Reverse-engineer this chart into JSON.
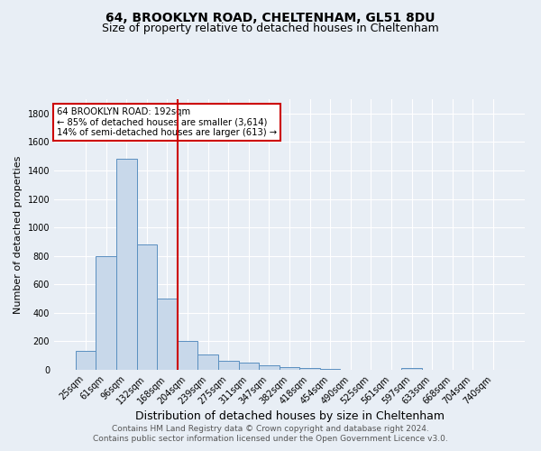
{
  "title": "64, BROOKLYN ROAD, CHELTENHAM, GL51 8DU",
  "subtitle": "Size of property relative to detached houses in Cheltenham",
  "xlabel": "Distribution of detached houses by size in Cheltenham",
  "ylabel": "Number of detached properties",
  "footer_line1": "Contains HM Land Registry data © Crown copyright and database right 2024.",
  "footer_line2": "Contains public sector information licensed under the Open Government Licence v3.0.",
  "bar_labels": [
    "25sqm",
    "61sqm",
    "96sqm",
    "132sqm",
    "168sqm",
    "204sqm",
    "239sqm",
    "275sqm",
    "311sqm",
    "347sqm",
    "382sqm",
    "418sqm",
    "454sqm",
    "490sqm",
    "525sqm",
    "561sqm",
    "597sqm",
    "633sqm",
    "668sqm",
    "704sqm",
    "740sqm"
  ],
  "bar_values": [
    130,
    800,
    1480,
    880,
    500,
    205,
    105,
    65,
    48,
    33,
    18,
    10,
    5,
    3,
    2,
    1,
    12,
    0,
    0,
    0,
    0
  ],
  "bar_color": "#c8d8ea",
  "bar_edge_color": "#5a8fc0",
  "vline_color": "#cc0000",
  "annotation_text": "64 BROOKLYN ROAD: 192sqm\n← 85% of detached houses are smaller (3,614)\n14% of semi-detached houses are larger (613) →",
  "annotation_box_color": "#ffffff",
  "annotation_box_edge": "#cc0000",
  "ylim": [
    0,
    1900
  ],
  "yticks": [
    0,
    200,
    400,
    600,
    800,
    1000,
    1200,
    1400,
    1600,
    1800
  ],
  "bg_color": "#e8eef5",
  "plot_bg_color": "#e8eef5",
  "grid_color": "#ffffff",
  "title_fontsize": 10,
  "subtitle_fontsize": 9,
  "xlabel_fontsize": 9,
  "ylabel_fontsize": 8,
  "tick_fontsize": 7,
  "footer_fontsize": 6.5
}
